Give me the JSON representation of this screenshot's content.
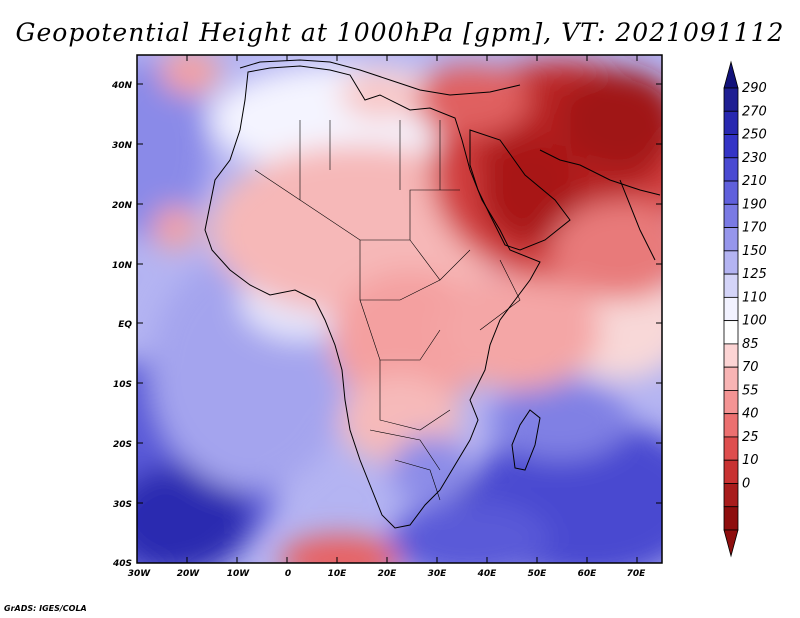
{
  "map": {
    "title": "Geopotential Height at 1000hPa [gpm], VT: 2021091112",
    "variable": "Geopotential Height",
    "level": "1000hPa",
    "units": "gpm",
    "valid_time": "2021091112",
    "credit": "GrADS: IGES/COLA",
    "lon_labels": [
      "30W",
      "20W",
      "10W",
      "0",
      "10E",
      "20E",
      "30E",
      "40E",
      "50E",
      "60E",
      "70E"
    ],
    "lat_labels": [
      "40N",
      "30N",
      "20N",
      "10N",
      "EQ",
      "10S",
      "20S",
      "30S",
      "40S"
    ],
    "colorbar": {
      "labels": [
        "290",
        "270",
        "250",
        "230",
        "210",
        "190",
        "170",
        "150",
        "125",
        "110",
        "100",
        "85",
        "70",
        "55",
        "40",
        "25",
        "10",
        "0"
      ],
      "colors": [
        "#1f1f93",
        "#2828b0",
        "#3434c6",
        "#4a4ad2",
        "#6060dc",
        "#7a7ae4",
        "#9696ec",
        "#b4b4f2",
        "#d4d4f8",
        "#f2f2ff",
        "#ffffff",
        "#fcd4d4",
        "#f8b4b4",
        "#f49494",
        "#ec7070",
        "#de4e4e",
        "#c83232",
        "#a81c1c",
        "#8e0e0e"
      ],
      "top_color": "#12127a",
      "bottom_color": "#8e0e0e"
    }
  }
}
